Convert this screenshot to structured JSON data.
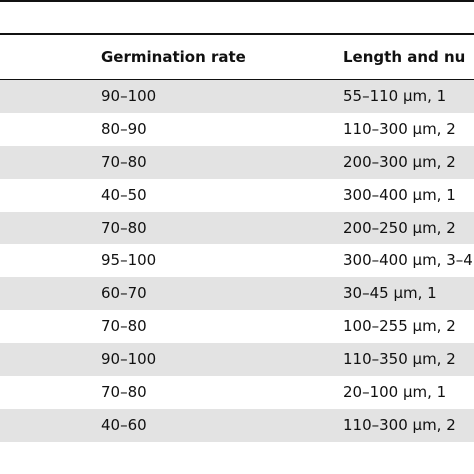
{
  "table": {
    "headers": [
      "Germination rate",
      "Length and nu"
    ],
    "rows": [
      [
        "90–100",
        "55–110 μm, 1"
      ],
      [
        "80–90",
        "110–300 μm, 2"
      ],
      [
        "70–80",
        "200–300 μm, 2"
      ],
      [
        "40–50",
        "300–400 μm, 1"
      ],
      [
        "70–80",
        "200–250 μm, 2"
      ],
      [
        "95–100",
        "300–400 μm, 3–4"
      ],
      [
        "60–70",
        "30–45 μm, 1"
      ],
      [
        "70–80",
        "100–255 μm, 2"
      ],
      [
        "90–100",
        "110–350 μm, 2"
      ],
      [
        "70–80",
        "20–100 μm, 1"
      ],
      [
        "40–60",
        "110–300 μm, 2"
      ]
    ]
  },
  "colors": {
    "shaded_row": "#e3e3e3",
    "rule": "#111111"
  }
}
